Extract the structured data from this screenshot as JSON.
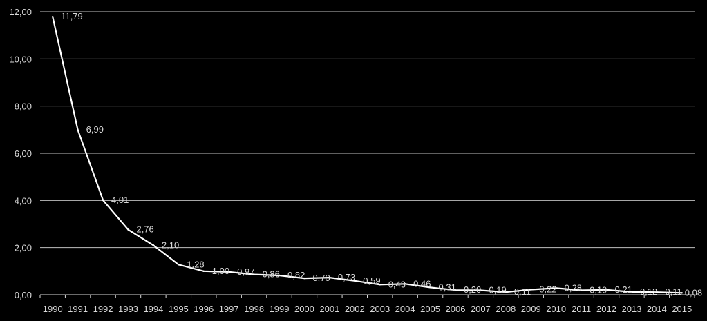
{
  "chart_data": {
    "type": "line",
    "x": [
      "1990",
      "1991",
      "1992",
      "1993",
      "1994",
      "1995",
      "1996",
      "1997",
      "1998",
      "1999",
      "2000",
      "2001",
      "2002",
      "2003",
      "2004",
      "2005",
      "2006",
      "2007",
      "2008",
      "2009",
      "2010",
      "2011",
      "2012",
      "2013",
      "2014",
      "2015"
    ],
    "series": [
      {
        "values": [
          11.79,
          6.99,
          4.01,
          2.76,
          2.1,
          1.28,
          1.0,
          0.97,
          0.86,
          0.82,
          0.7,
          0.73,
          0.59,
          0.43,
          0.46,
          0.31,
          0.2,
          0.19,
          0.11,
          0.22,
          0.28,
          0.19,
          0.21,
          0.12,
          0.11,
          0.08
        ],
        "labels": [
          "11,79",
          "6,99",
          "4,01",
          "2,76",
          "2,10",
          "1,28",
          "1,00",
          "0,97",
          "0,86",
          "0,82",
          "0,70",
          "0,73",
          "0,59",
          "0,43",
          "0,46",
          "0,31",
          "0,20",
          "0,19",
          "0,11",
          "0,22",
          "0,28",
          "0,19",
          "0,21",
          "0,12",
          "0,11",
          "0,08"
        ]
      }
    ],
    "ylim": [
      0,
      12
    ],
    "yticks": [
      "0,00",
      "2,00",
      "4,00",
      "6,00",
      "8,00",
      "10,00",
      "12,00"
    ],
    "grid": true,
    "colors": {
      "background": "#000000",
      "line": "#ffffff",
      "text": "#d9d9d9",
      "grid": "#bfbfbf"
    }
  }
}
